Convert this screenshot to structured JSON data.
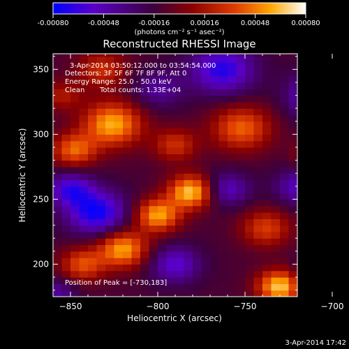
{
  "chart_data": {
    "type": "heatmap",
    "title": "Reconstructed RHESSI Image",
    "xlabel": "Heliocentric X (arcsec)",
    "ylabel": "Heliocentric Y (arcsec)",
    "xlim": [
      -860,
      -720
    ],
    "ylim": [
      175,
      362
    ],
    "x_ticks": [
      -850,
      -800,
      -750,
      -700
    ],
    "y_ticks": [
      200,
      250,
      300,
      350
    ],
    "colorbar": {
      "range": [
        -0.0008,
        0.0008
      ],
      "ticks": [
        "-0.00080",
        "-0.00048",
        "-0.00016",
        "0.00016",
        "0.00048",
        "0.00080"
      ],
      "tick_values": [
        -0.0008,
        -0.00048,
        -0.00016,
        0.00016,
        0.00048,
        0.0008
      ],
      "units_label": "(photons cm⁻² s⁻¹ asec⁻²)",
      "colors": [
        "#0000ff",
        "#5a00c8",
        "#3c003c",
        "#8b0000",
        "#e03c00",
        "#ffa500",
        "#ffffff"
      ]
    },
    "annotations": {
      "time_range": "3-Apr-2014 03:50:12.000 to 03:54:54.000",
      "detectors": "Detectors: 3F 5F 6F 7F 8F 9F, Att 0",
      "energy": "Energy Range: 25.0 - 50.0 keV",
      "clean_label": "Clean",
      "counts": "Total counts: 1.33E+04",
      "peak": "Position of Peak = [-730,183]"
    },
    "peak_position": [
      -730,
      183
    ],
    "blobs": [
      {
        "x": -826,
        "y": 308,
        "amp": 0.00072,
        "sigma": 12
      },
      {
        "x": -848,
        "y": 288,
        "amp": 0.00055,
        "sigma": 9
      },
      {
        "x": -781,
        "y": 256,
        "amp": 0.00078,
        "sigma": 9
      },
      {
        "x": -800,
        "y": 238,
        "amp": 0.0007,
        "sigma": 9
      },
      {
        "x": -820,
        "y": 212,
        "amp": 0.0007,
        "sigma": 10
      },
      {
        "x": -843,
        "y": 200,
        "amp": 0.0005,
        "sigma": 9
      },
      {
        "x": -730,
        "y": 183,
        "amp": 0.0008,
        "sigma": 9
      },
      {
        "x": -738,
        "y": 228,
        "amp": 0.00045,
        "sigma": 10
      },
      {
        "x": -752,
        "y": 305,
        "amp": 0.00055,
        "sigma": 12
      },
      {
        "x": -706,
        "y": 283,
        "amp": 0.0006,
        "sigma": 9
      },
      {
        "x": -692,
        "y": 247,
        "amp": 0.00055,
        "sigma": 8
      },
      {
        "x": -790,
        "y": 292,
        "amp": 0.0004,
        "sigma": 9
      },
      {
        "x": -832,
        "y": 350,
        "amp": 0.0004,
        "sigma": 10
      },
      {
        "x": -855,
        "y": 330,
        "amp": 0.0003,
        "sigma": 8
      },
      {
        "x": -835,
        "y": 240,
        "amp": -0.00065,
        "sigma": 12
      },
      {
        "x": -850,
        "y": 258,
        "amp": -0.0005,
        "sigma": 9
      },
      {
        "x": -763,
        "y": 350,
        "amp": -0.00058,
        "sigma": 13
      },
      {
        "x": -707,
        "y": 330,
        "amp": -0.00062,
        "sigma": 12
      },
      {
        "x": -700,
        "y": 190,
        "amp": -0.00072,
        "sigma": 11
      },
      {
        "x": -718,
        "y": 260,
        "amp": -0.00042,
        "sigma": 10
      },
      {
        "x": -790,
        "y": 200,
        "amp": -0.00045,
        "sigma": 10
      },
      {
        "x": -760,
        "y": 258,
        "amp": -0.0004,
        "sigma": 9
      },
      {
        "x": -800,
        "y": 335,
        "amp": -0.0003,
        "sigma": 10
      },
      {
        "x": -858,
        "y": 178,
        "amp": -0.0003,
        "sigma": 8
      }
    ]
  },
  "footer": {
    "date": "3-Apr-2014 17:42"
  }
}
